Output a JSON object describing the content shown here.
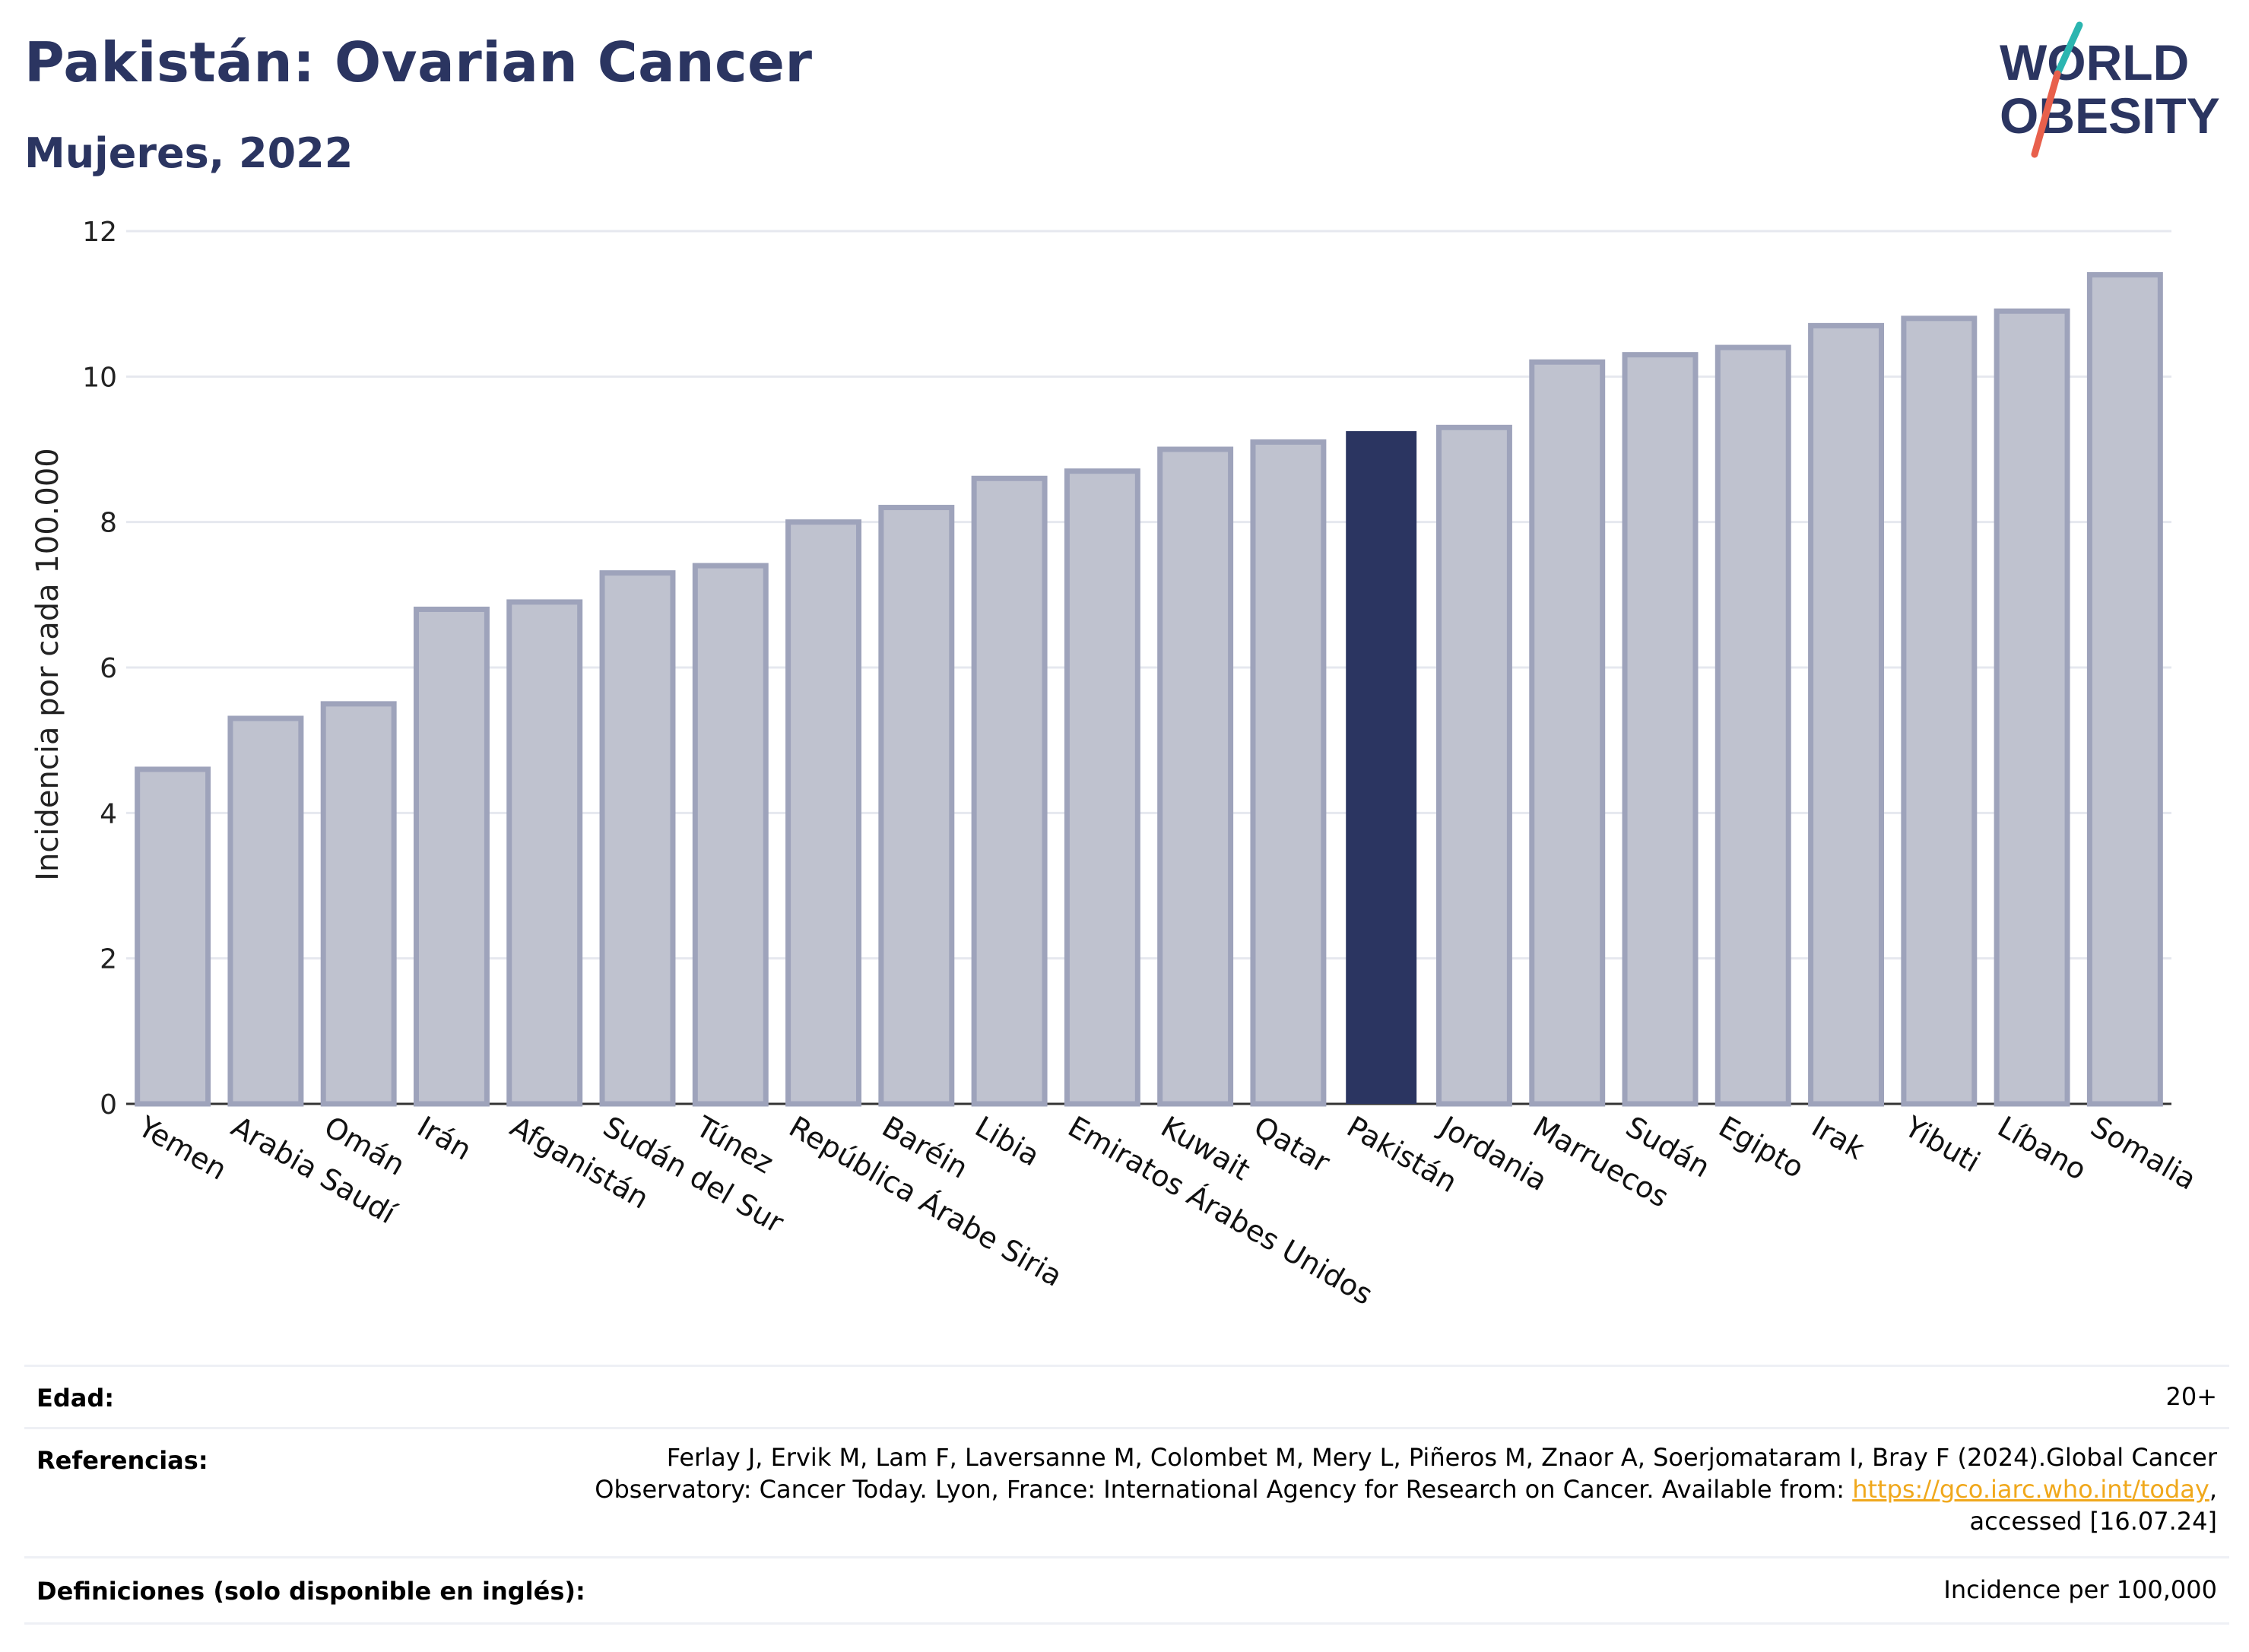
{
  "header": {
    "title": "Pakistán: Ovarian Cancer",
    "subtitle": "Mujeres, 2022",
    "logo_line1": "WORLD",
    "logo_line2": "OBESITY"
  },
  "colors": {
    "primary": "#2b3561",
    "bar_muted": "#bfc2cf",
    "bar_muted_border": "#9ea3bb",
    "logo_teal": "#2bb5b0",
    "logo_coral": "#e8604c",
    "link": "#f0a81c"
  },
  "chart_data": {
    "type": "bar",
    "categories": [
      "Yemen",
      "Arabia Saudí",
      "Omán",
      "Irán",
      "Afganistán",
      "Sudán del Sur",
      "Túnez",
      "República Árabe Siria",
      "Baréin",
      "Libia",
      "Emiratos Árabes Unidos",
      "Kuwait",
      "Qatar",
      "Pakistán",
      "Jordania",
      "Marruecos",
      "Sudán",
      "Egipto",
      "Irak",
      "Yibuti",
      "Líbano",
      "Somalia"
    ],
    "values": [
      4.6,
      5.3,
      5.5,
      6.8,
      6.9,
      7.3,
      7.4,
      8.0,
      8.2,
      8.6,
      8.7,
      9.0,
      9.1,
      9.25,
      9.3,
      10.2,
      10.3,
      10.4,
      10.7,
      10.8,
      10.9,
      11.4
    ],
    "highlight": "Pakistán",
    "ylabel": "Incidencia por cada 100.000",
    "ylim": [
      0,
      12
    ],
    "yticks": [
      0,
      2,
      4,
      6,
      8,
      10,
      12
    ],
    "grid": true
  },
  "info": {
    "age_label": "Edad:",
    "age_value": "20+",
    "refs_label": "Referencias:",
    "refs_line1": "Ferlay J, Ervik M, Lam F, Laversanne M, Colombet M, Mery L, Piñeros M, Znaor A, Soerjomataram I, Bray F (2024).Global Cancer",
    "refs_line2_pre": "Observatory: Cancer Today. Lyon, France: International Agency for Research on Cancer. Available from: ",
    "refs_link": "https://gco.iarc.who.int/today",
    "refs_line2_post": ",",
    "refs_line3": "accessed [16.07.24]",
    "defs_label": "Definiciones (solo disponible en inglés):",
    "defs_value": "Incidence per 100,000"
  }
}
